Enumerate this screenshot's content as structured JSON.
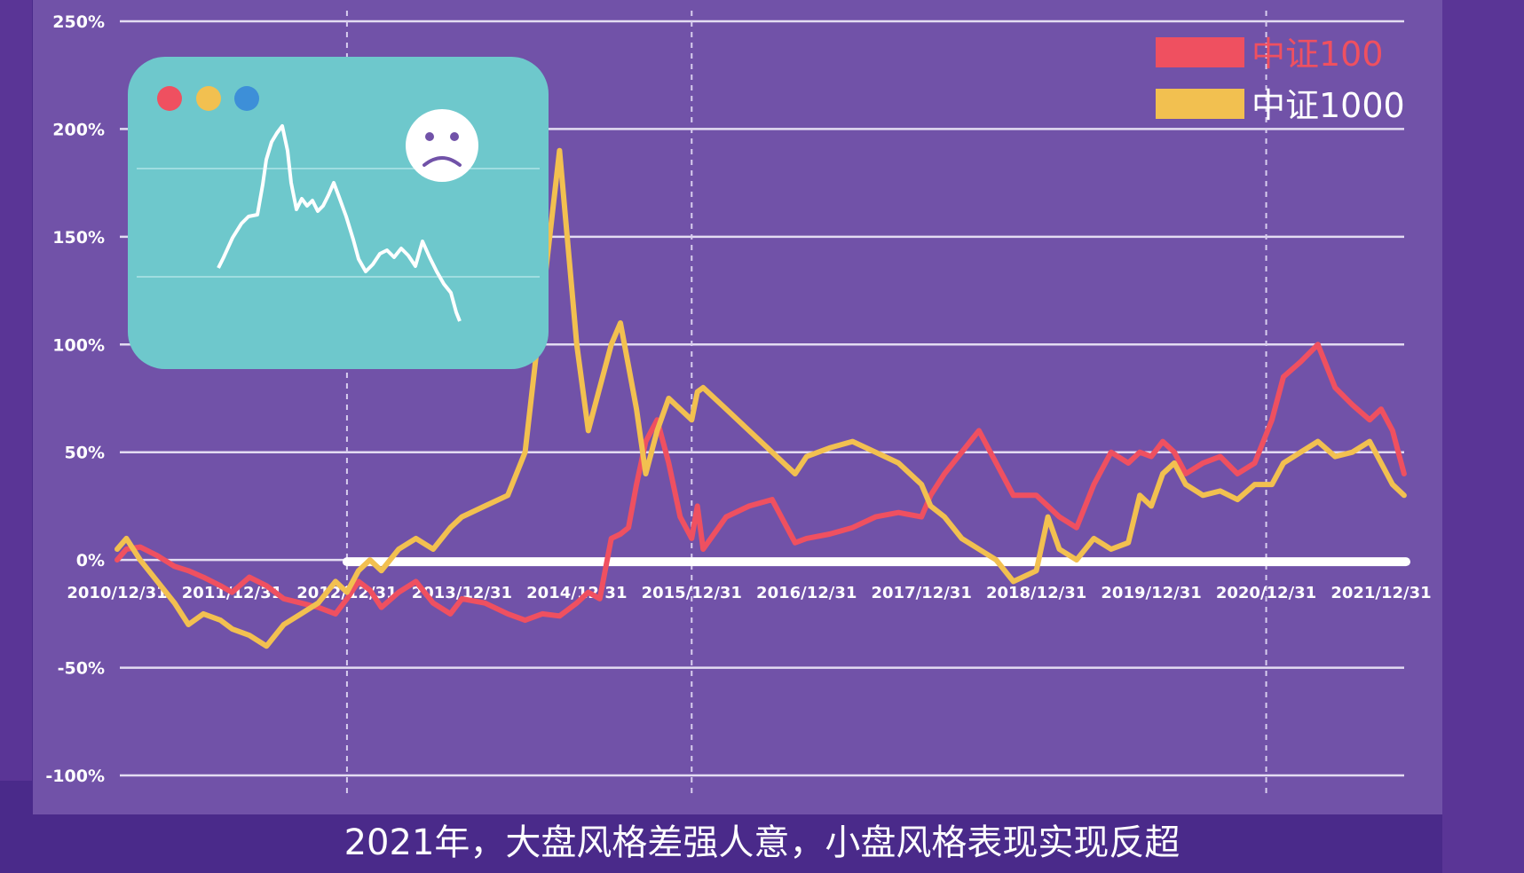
{
  "caption": "2021年，大盘风格差强人意，小盘风格表现实现反超",
  "chart_data": {
    "type": "line",
    "title": "",
    "xlabel": "",
    "ylabel": "",
    "ylim": [
      -100,
      250
    ],
    "yticks": [
      "250%",
      "200%",
      "150%",
      "100%",
      "50%",
      "0%",
      "-50%",
      "-100%"
    ],
    "xticks": [
      "2010/12/31",
      "2011/12/31",
      "2012/12/31",
      "2013/12/31",
      "2014/12/31",
      "2015/12/31",
      "2016/12/31",
      "2017/12/31",
      "2018/12/31",
      "2019/12/31",
      "2020/12/31",
      "2021/12/31"
    ],
    "xlim": [
      2010.0,
      2022.0
    ],
    "grid": true,
    "legend_position": "top-right",
    "series": [
      {
        "name": "中证100",
        "color": "#ef5060",
        "x": [
          2011.0,
          2011.08,
          2011.2,
          2011.35,
          2011.5,
          2011.62,
          2011.75,
          2011.9,
          2012.0,
          2012.15,
          2012.3,
          2012.45,
          2012.6,
          2012.75,
          2012.9,
          2013.0,
          2013.1,
          2013.2,
          2013.3,
          2013.45,
          2013.6,
          2013.75,
          2013.9,
          2014.0,
          2014.2,
          2014.4,
          2014.55,
          2014.7,
          2014.85,
          2015.0,
          2015.1,
          2015.2,
          2015.3,
          2015.38,
          2015.45,
          2015.52,
          2015.6,
          2015.7,
          2015.8,
          2015.9,
          2016.0,
          2016.05,
          2016.1,
          2016.3,
          2016.5,
          2016.7,
          2016.9,
          2017.0,
          2017.2,
          2017.4,
          2017.6,
          2017.8,
          2018.0,
          2018.08,
          2018.2,
          2018.35,
          2018.5,
          2018.65,
          2018.8,
          2019.0,
          2019.1,
          2019.2,
          2019.35,
          2019.5,
          2019.65,
          2019.8,
          2019.9,
          2020.0,
          2020.1,
          2020.2,
          2020.3,
          2020.45,
          2020.6,
          2020.75,
          2020.9,
          2021.05,
          2021.15,
          2021.3,
          2021.45,
          2021.6,
          2021.75,
          2021.9,
          2022.0,
          2022.1,
          2022.2
        ],
        "y": [
          0,
          5,
          6,
          2,
          -3,
          -5,
          -8,
          -12,
          -15,
          -8,
          -12,
          -18,
          -20,
          -22,
          -25,
          -18,
          -10,
          -14,
          -22,
          -15,
          -10,
          -20,
          -25,
          -18,
          -20,
          -25,
          -28,
          -25,
          -26,
          -20,
          -15,
          -18,
          10,
          12,
          15,
          35,
          55,
          65,
          45,
          20,
          10,
          25,
          5,
          20,
          25,
          28,
          8,
          10,
          12,
          15,
          20,
          22,
          20,
          30,
          40,
          50,
          60,
          45,
          30,
          30,
          25,
          20,
          15,
          35,
          50,
          45,
          50,
          48,
          55,
          50,
          40,
          45,
          48,
          40,
          45,
          65,
          85,
          92,
          100,
          80,
          72,
          65,
          70,
          60,
          40
        ]
      },
      {
        "name": "中证1000",
        "color": "#f2c050",
        "x": [
          2011.0,
          2011.08,
          2011.2,
          2011.35,
          2011.5,
          2011.62,
          2011.75,
          2011.9,
          2012.0,
          2012.15,
          2012.3,
          2012.45,
          2012.6,
          2012.75,
          2012.9,
          2013.0,
          2013.1,
          2013.2,
          2013.3,
          2013.45,
          2013.6,
          2013.75,
          2013.9,
          2014.0,
          2014.2,
          2014.4,
          2014.55,
          2014.7,
          2014.85,
          2015.0,
          2015.1,
          2015.2,
          2015.3,
          2015.38,
          2015.45,
          2015.52,
          2015.6,
          2015.7,
          2015.8,
          2015.9,
          2016.0,
          2016.05,
          2016.1,
          2016.3,
          2016.5,
          2016.7,
          2016.9,
          2017.0,
          2017.2,
          2017.4,
          2017.6,
          2017.8,
          2018.0,
          2018.08,
          2018.2,
          2018.35,
          2018.5,
          2018.65,
          2018.8,
          2019.0,
          2019.1,
          2019.2,
          2019.35,
          2019.5,
          2019.65,
          2019.8,
          2019.9,
          2020.0,
          2020.1,
          2020.2,
          2020.3,
          2020.45,
          2020.6,
          2020.75,
          2020.9,
          2021.05,
          2021.15,
          2021.3,
          2021.45,
          2021.6,
          2021.75,
          2021.9,
          2022.0,
          2022.1,
          2022.2
        ],
        "y": [
          5,
          10,
          0,
          -10,
          -20,
          -30,
          -25,
          -28,
          -32,
          -35,
          -40,
          -30,
          -25,
          -20,
          -10,
          -15,
          -5,
          0,
          -5,
          5,
          10,
          5,
          15,
          20,
          25,
          30,
          50,
          120,
          190,
          100,
          60,
          80,
          100,
          110,
          90,
          70,
          40,
          60,
          75,
          70,
          65,
          78,
          80,
          70,
          60,
          50,
          40,
          48,
          52,
          55,
          50,
          45,
          35,
          25,
          20,
          10,
          5,
          0,
          -10,
          -5,
          20,
          5,
          0,
          10,
          5,
          8,
          30,
          25,
          40,
          45,
          35,
          30,
          32,
          28,
          35,
          35,
          45,
          50,
          55,
          48,
          50,
          55,
          45,
          35,
          30
        ]
      }
    ]
  }
}
